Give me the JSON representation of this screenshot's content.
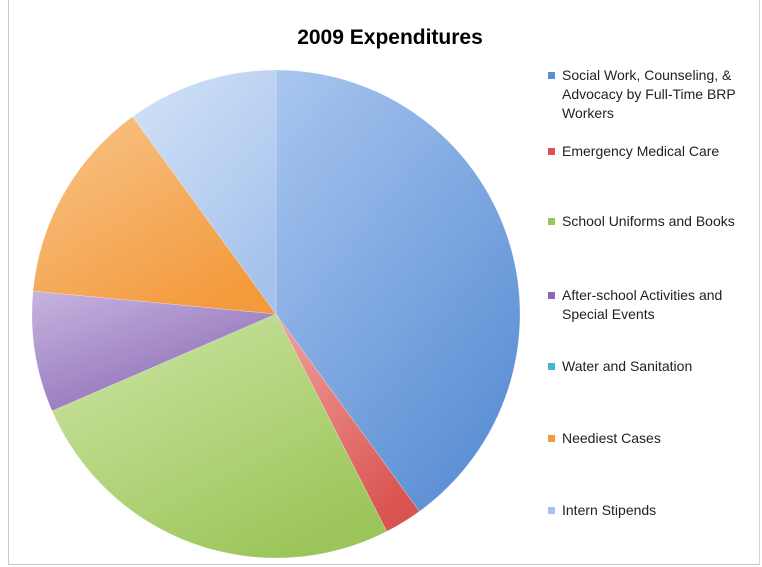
{
  "chart_data": {
    "type": "pie",
    "title": "2009 Expenditures",
    "slices": [
      {
        "label": "Social Work, Counseling, & Advocacy by Full-Time BRP Workers",
        "value": 40,
        "color": "#5b8fd4",
        "light": "#a9c6f0"
      },
      {
        "label": "Emergency Medical Care",
        "value": 2.5,
        "color": "#d9534f",
        "light": "#f0a3a0"
      },
      {
        "label": "School Uniforms and Books",
        "value": 26,
        "color": "#9bc55a",
        "light": "#cfe6a6"
      },
      {
        "label": "After-school Activities and Special Events",
        "value": 8,
        "color": "#8a6ab3",
        "light": "#c7b4e0"
      },
      {
        "label": "Water and Sanitation",
        "value": 0,
        "color": "#46b4d6",
        "light": "#a6dcee"
      },
      {
        "label": "Neediest Cases",
        "value": 13.5,
        "color": "#f39a3c",
        "light": "#f8c489"
      },
      {
        "label": "Intern Stipends",
        "value": 10,
        "color": "#a5c2ec",
        "light": "#d3e3f8"
      }
    ],
    "legend_position": "right"
  }
}
